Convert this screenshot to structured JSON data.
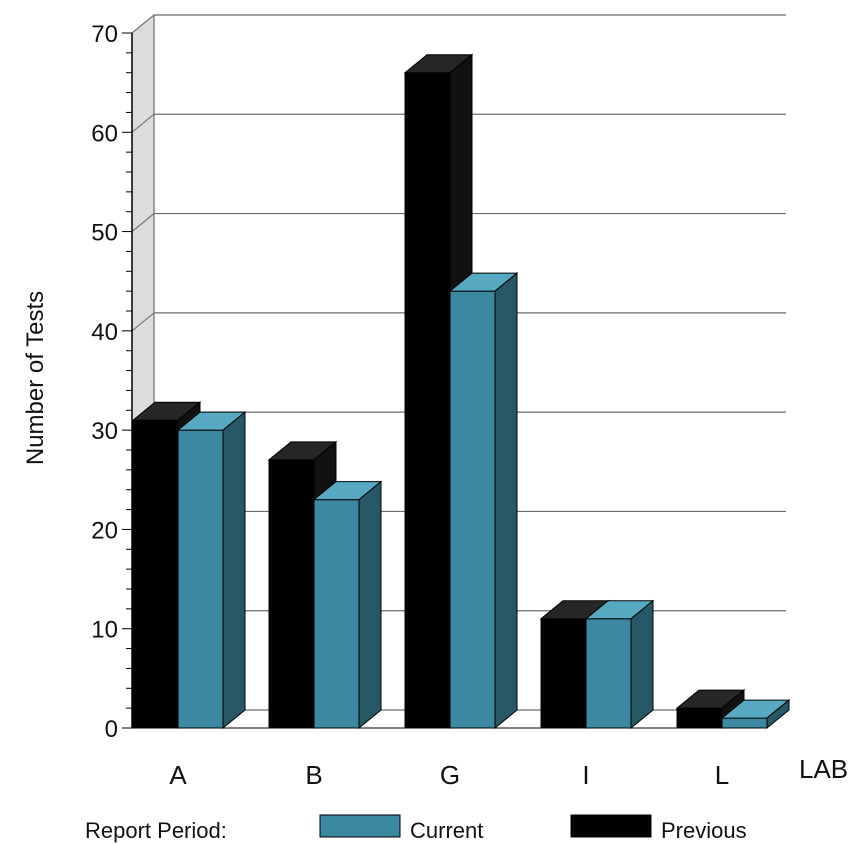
{
  "chart_data": {
    "type": "bar",
    "categories": [
      "A",
      "B",
      "G",
      "I",
      "L"
    ],
    "series": [
      {
        "name": "Previous",
        "values": [
          31,
          27,
          66,
          11,
          2
        ]
      },
      {
        "name": "Current",
        "values": [
          30,
          23,
          44,
          11,
          1
        ]
      }
    ],
    "ylabel": "Number of Tests",
    "xlabel": "LAB",
    "ylim": [
      0,
      70
    ],
    "yticks": [
      0,
      10,
      20,
      30,
      40,
      50,
      60,
      70
    ],
    "grid": true,
    "three_d": true,
    "legend": {
      "title": "Report Period:",
      "position": "bottom"
    },
    "colors": {
      "Previous": "#000000",
      "Current": "#3a89a0"
    }
  }
}
